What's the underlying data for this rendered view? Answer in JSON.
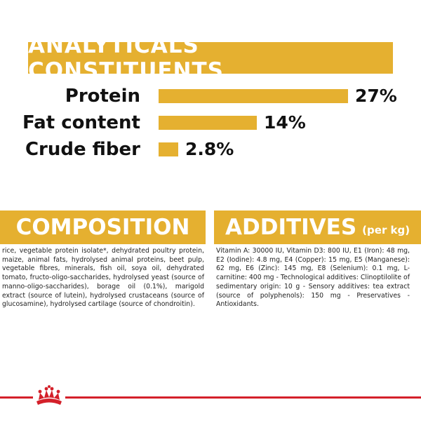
{
  "analytics": {
    "title": "ANALYTICALS CONSTITUENTS",
    "rows": [
      {
        "label": "Protein",
        "value": "27%",
        "amount": 27
      },
      {
        "label": "Fat content",
        "value": "14%",
        "amount": 14
      },
      {
        "label": "Crude fiber",
        "value": "2.8%",
        "amount": 2.8
      }
    ]
  },
  "composition": {
    "title": "COMPOSITION",
    "text": "rice, vegetable protein isolate*, dehydrated poultry protein, maize, animal fats, hydrolysed animal proteins, beet pulp, vegetable fibres, minerals, fish oil, soya oil, dehydrated tomato, fructo-oligo-saccharides, hydrolysed yeast (source of manno-oligo-saccharides), borage oil (0.1%), marigold extract (source of lutein), hydrolysed crustaceans (source of glucosamine), hydrolysed cartilage (source of chondroitin)."
  },
  "additives": {
    "title": "ADDITIVES",
    "title_suffix": "(per kg)",
    "text": "Vitamin A: 30000 IU, Vitamin D3: 800 IU, E1 (Iron): 48 mg, E2 (Iodine): 4.8 mg, E4 (Copper): 15 mg, E5 (Manganese): 62 mg, E6 (Zinc): 145 mg, E8 (Selenium): 0.1 mg, L-carnitine: 400 mg - Technological additives: Clinoptilolite of sedimentary origin: 10 g - Sensory additives: tea extract (source of polyphenols): 150 mg - Preservatives - Antioxidants."
  },
  "colors": {
    "accent": "#e5b030",
    "brand_red": "#d4202a",
    "text": "#111111"
  },
  "footer": {
    "logo_icon": "royal-canin-crown-icon"
  }
}
